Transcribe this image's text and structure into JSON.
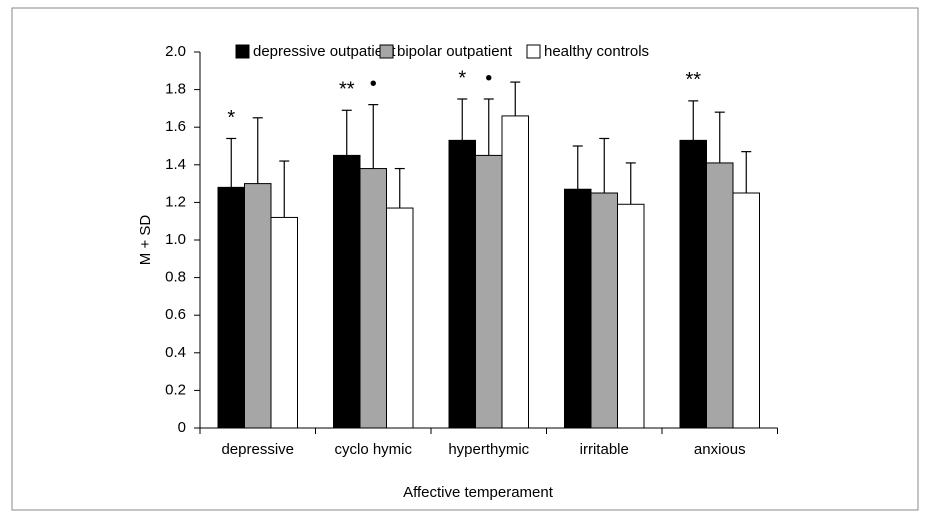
{
  "chart_data": {
    "type": "bar",
    "xlabel": "Affective temperament",
    "ylabel": "M + SD",
    "categories": [
      "depressive",
      "cyclo hymic",
      "hyperthymic",
      "irritable",
      "anxious"
    ],
    "series": [
      {
        "name": "depressive outpatient",
        "color": "#000000",
        "values": [
          1.28,
          1.45,
          1.53,
          1.27,
          1.53
        ],
        "errors": [
          0.26,
          0.24,
          0.22,
          0.23,
          0.21
        ]
      },
      {
        "name": "bipolar outpatient",
        "color": "#a6a6a6",
        "values": [
          1.3,
          1.38,
          1.45,
          1.25,
          1.41
        ],
        "errors": [
          0.35,
          0.34,
          0.3,
          0.29,
          0.27
        ]
      },
      {
        "name": "healthy controls",
        "color": "#ffffff",
        "values": [
          1.12,
          1.17,
          1.66,
          1.19,
          1.25
        ],
        "errors": [
          0.3,
          0.21,
          0.18,
          0.22,
          0.22
        ]
      }
    ],
    "annotations": [
      {
        "text": "*",
        "category": "depressive",
        "series": "depressive outpatient"
      },
      {
        "text": "**",
        "category": "cyclo hymic",
        "series": "depressive outpatient"
      },
      {
        "text": "•",
        "category": "cyclo hymic",
        "series": "bipolar outpatient"
      },
      {
        "text": "*",
        "category": "hyperthymic",
        "series": "depressive outpatient"
      },
      {
        "text": "•",
        "category": "hyperthymic",
        "series": "bipolar outpatient"
      },
      {
        "text": "**",
        "category": "anxious",
        "series": "depressive outpatient"
      }
    ],
    "ylim": [
      0,
      2.0
    ],
    "yticks": [
      0,
      0.2,
      0.4,
      0.6,
      0.8,
      {
        "value": 1.0,
        "label": "1.0"
      },
      1.2,
      1.4,
      1.6,
      1.8,
      {
        "value": 2.0,
        "label": "2.0"
      }
    ],
    "legend": "top"
  }
}
